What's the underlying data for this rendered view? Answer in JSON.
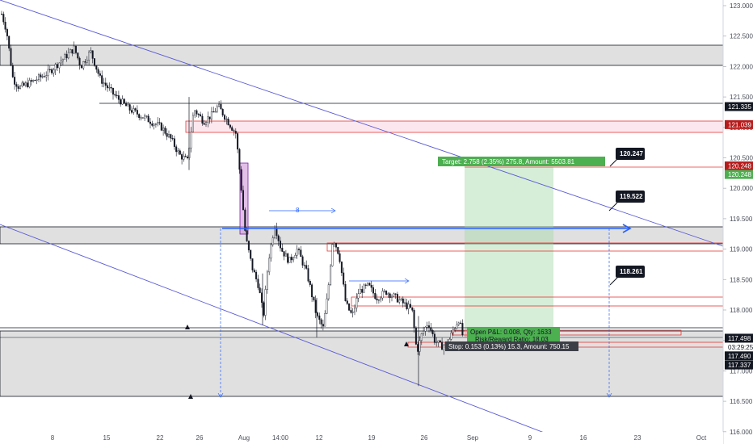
{
  "chart_data": {
    "type": "candlestick",
    "x_ticks": [
      "8",
      "15",
      "22",
      "26",
      "Aug",
      "14:00",
      "12",
      "19",
      "26",
      "Sep",
      "9",
      "16",
      "23",
      "Oct"
    ],
    "y_ticks": [
      "123.000",
      "122.500",
      "122.000",
      "121.500",
      "121.000",
      "120.500",
      "120.000",
      "119.500",
      "119.000",
      "118.500",
      "118.000",
      "117.500",
      "117.000",
      "116.500",
      "116.000"
    ],
    "ylim": [
      115.88,
      123.08
    ],
    "price_labels": [
      {
        "text": "121.335",
        "price": 121.335,
        "bg": "#131722",
        "color": "#ffffff"
      },
      {
        "text": "121.039",
        "price": 121.039,
        "bg": "#b71c1c",
        "color": "#ffffff"
      },
      {
        "text": "120.248",
        "price": 120.36,
        "bg": "#b71c1c",
        "color": "#ffffff"
      },
      {
        "text": "120.248",
        "price": 120.22,
        "bg": "#4caf50",
        "color": "#ffffff"
      },
      {
        "text": "117.498",
        "price": 117.53,
        "bg": "#131722",
        "color": "#ffffff"
      },
      {
        "text": "03:29:25",
        "price": 117.38,
        "bg": "#ffffff",
        "color": "#131722"
      },
      {
        "text": "117.490",
        "price": 117.24,
        "bg": "#131722",
        "color": "#ffffff"
      },
      {
        "text": "117.337",
        "price": 117.09,
        "bg": "#131722",
        "color": "#ffffff"
      }
    ],
    "level_callouts": [
      {
        "text": "120.247",
        "price": 120.247
      },
      {
        "text": "119.522",
        "price": 119.522
      },
      {
        "text": "118.261",
        "price": 118.261
      }
    ],
    "position": {
      "target_label": "Target: 2.758 (2.35%) 275.8, Amount: 5503.81",
      "stop_label": "Stop: 0.153 (0.13%) 15.3, Amount: 750.15",
      "open_pnl_label": "Open P&L: 0.008, Qty: 1633",
      "risk_reward_label": "Risk/Reward Ratio: 18.03",
      "entry": 117.49,
      "target": 120.248,
      "stop": 117.337
    },
    "range_marker_label": "8",
    "colors": {
      "candle": "#131722",
      "trendline": "#5b5bd6",
      "horizontal_line": "#131722",
      "zone_fill": "#d6d6d6",
      "resistance_box": "#e53935",
      "target_fill": "#a5d6a7",
      "stop_fill": "#ef9a9a",
      "arrow": "#2962ff",
      "highlight_box": "#9c27b0"
    }
  }
}
